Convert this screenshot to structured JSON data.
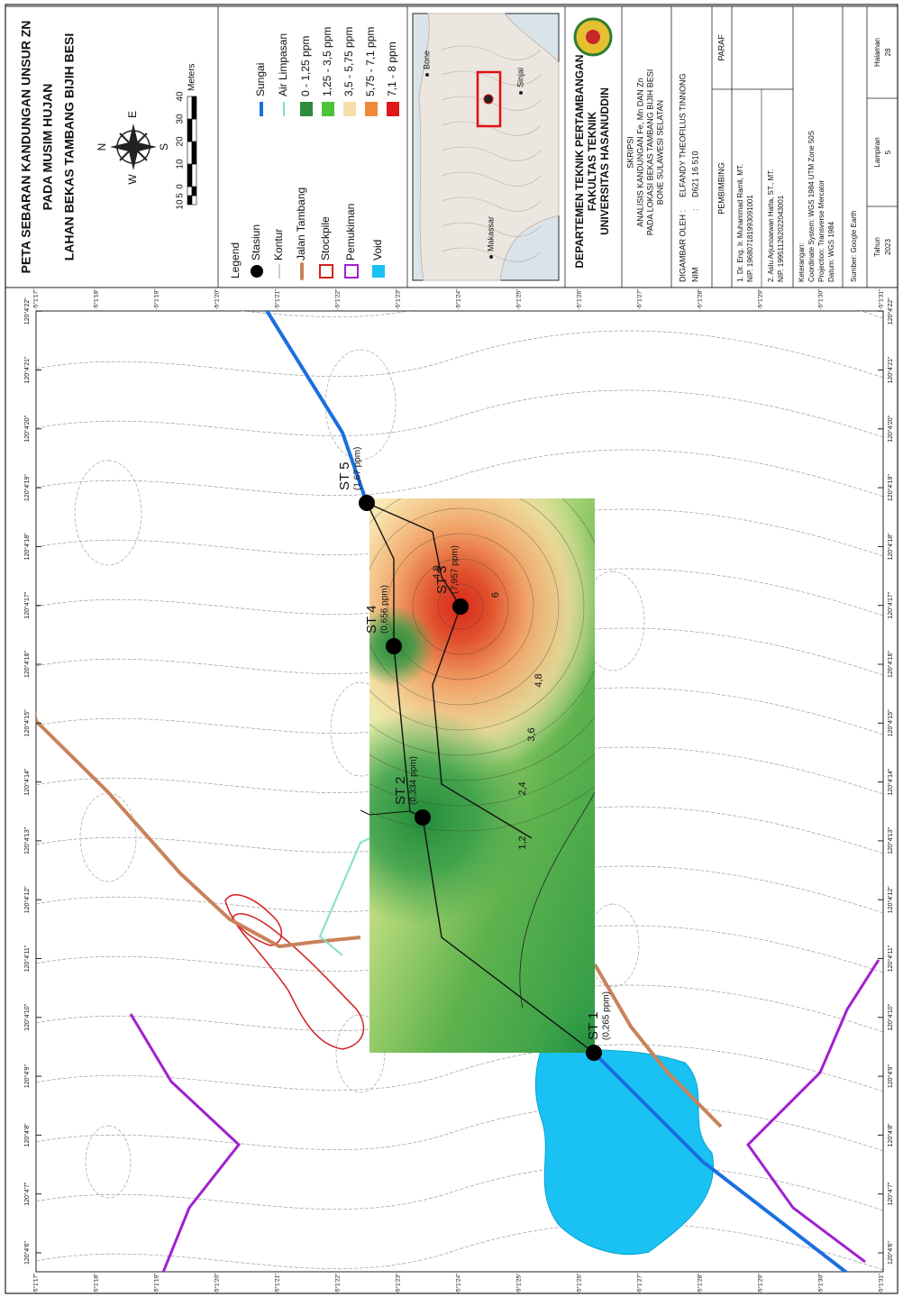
{
  "title": {
    "lines": [
      "PETA SEBARAN KANDUNGAN UNSUR ZN",
      "PADA MUSIM HUJAN",
      "LAHAN BEKAS TAMBANG BIJIH BESI"
    ]
  },
  "compass": {
    "n": "N",
    "e": "E",
    "s": "S",
    "w": "W"
  },
  "scale_bar": {
    "labels": [
      "10",
      "5",
      "0",
      "10",
      "20",
      "30",
      "40"
    ],
    "unit": "Meters"
  },
  "legend": {
    "title": "Legend",
    "items": [
      "Stasiun",
      "Kontur",
      "Jalan Tambang",
      "Stockpile",
      "Pemukiman",
      "Void"
    ],
    "lines": [
      "Sungai",
      "Air Limpasan"
    ],
    "classes": [
      "0 - 1,25 ppm",
      "1,25 - 3,5 ppm",
      "3,5 - 5,75 ppm",
      "5,75 - 7,1 ppm",
      "7,1 - 8 ppm"
    ]
  },
  "inset": {
    "labels": [
      "Bone",
      "Sinjai",
      "Makassar"
    ]
  },
  "institution": {
    "lines": [
      "DEPARTEMEN TEKNIK PERTAMBANGAN",
      "FAKULTAS TEKNIK",
      "UNIVERSITAS HASANUDDIN"
    ]
  },
  "thesis": {
    "label": "SKRIPSI",
    "lines": [
      "ANALISIS KANDUNGAN Fe, Mn DAN Zn",
      "PADA LOKASI BEKAS TAMBANG BIJIH BESI",
      "BONE SULAWESI SELATAN"
    ]
  },
  "author": {
    "drawn_label": "DIGAMBAR OLEH :",
    "name": "ELFANDY THEOFILUS TINNONG",
    "nim_label": "NIM",
    "nim_sep": ":",
    "nim": "D621 16 510"
  },
  "supervisors": {
    "header": "PEMBIMBING",
    "sign": "PARAF",
    "rows": [
      [
        "1. Dr. Eng. Ir. Muhammad Ramli, MT.",
        "NIP. 196807181993091001"
      ],
      [
        "2. Aslu Arjunoarwan Hatta, ST., MT.",
        "NIP. 199511262022043001"
      ]
    ]
  },
  "notes": {
    "lines": [
      "Keterangan:",
      "Coordinate System: WGS 1984 UTM Zone 50S",
      "Projection: Transverse Mercator",
      "Datum: WGS 1984"
    ],
    "source": "Sumber: Google Earth"
  },
  "footer": {
    "year_label": "Tahun",
    "year": "2023",
    "appendix_label": "Lampiran",
    "appendix": "5",
    "page_label": "Halaman",
    "page": "28"
  },
  "map": {
    "lon_labels": [
      "120°4'6\"",
      "120°4'7\"",
      "120°4'8\"",
      "120°4'9\"",
      "120°4'10\"",
      "120°4'11\"",
      "120°4'12\"",
      "120°4'13\"",
      "120°4'14\"",
      "120°4'15\"",
      "120°4'16\"",
      "120°4'17\"",
      "120°4'18\"",
      "120°4'19\"",
      "120°4'20\"",
      "120°4'21\"",
      "120°4'22\""
    ],
    "lat_labels": [
      "-5°1'17\"",
      "-5°1'18\"",
      "-5°1'19\"",
      "-5°1'20\"",
      "-5°1'21\"",
      "-5°1'22\"",
      "-5°1'23\"",
      "-5°1'24\"",
      "-5°1'25\"",
      "-5°1'26\"",
      "-5°1'27\"",
      "-5°1'28\"",
      "-5°1'29\"",
      "-5°1'30\"",
      "-5°1'31\""
    ],
    "stations": [
      {
        "name": "ST 1",
        "label": "(0,265 ppm)"
      },
      {
        "name": "ST 2",
        "label": "(0,334 ppm)"
      },
      {
        "name": "ST 3",
        "label": "(7,957 ppm)"
      },
      {
        "name": "ST 4",
        "label": "(0,656 ppm)"
      },
      {
        "name": "ST 5",
        "label": "(1,67 ppm)"
      }
    ],
    "contour_labels": [
      "4,8",
      "6",
      "4,8",
      "3,6",
      "2,4",
      "1,2"
    ]
  }
}
